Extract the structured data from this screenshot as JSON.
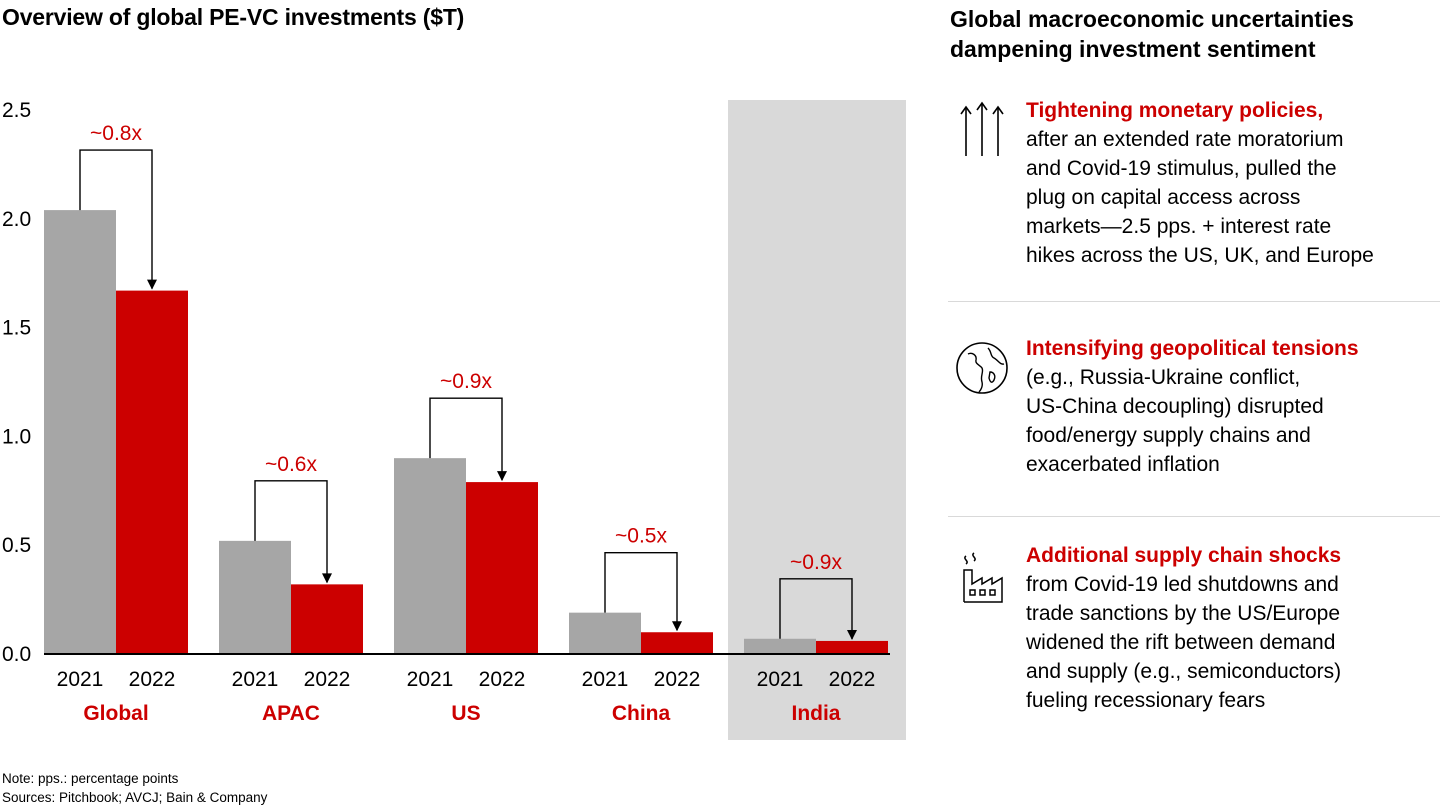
{
  "left_title": "Overview of global PE-VC investments ($T)",
  "right_title_line1": "Global macroeconomic uncertainties",
  "right_title_line2": "dampening investment sentiment",
  "colors": {
    "gray": "#a6a6a6",
    "red": "#cc0000",
    "highlight": "#d9d9d9",
    "label_red": "#cc0000"
  },
  "chart_data": {
    "type": "bar",
    "title": "Overview of global PE-VC investments ($T)",
    "xlabel": "",
    "ylabel": "$T",
    "ylim": [
      0,
      2.5
    ],
    "yticks": [
      "0.0",
      "0.5",
      "1.0",
      "1.5",
      "2.0",
      "2.5"
    ],
    "grid": false,
    "categories": [
      "Global",
      "APAC",
      "US",
      "China",
      "India"
    ],
    "highlighted_category": "India",
    "series": [
      {
        "name": "2021",
        "color": "#a6a6a6",
        "values": [
          2.04,
          0.52,
          0.9,
          0.19,
          0.07
        ]
      },
      {
        "name": "2022",
        "color": "#cc0000",
        "values": [
          1.67,
          0.32,
          0.79,
          0.1,
          0.06
        ]
      }
    ],
    "annotations": [
      "~0.8x",
      "~0.6x",
      "~0.9x",
      "~0.5x",
      "~0.9x"
    ]
  },
  "factors": [
    {
      "icon": "arrows-up-icon",
      "heading": "Tightening monetary policies,",
      "lines": [
        "after an extended rate moratorium",
        "and Covid-19 stimulus, pulled the",
        "plug on capital access across",
        "markets—2.5 pps. + interest rate",
        "hikes across the US, UK, and Europe"
      ]
    },
    {
      "icon": "globe-icon",
      "heading": "Intensifying geopolitical tensions",
      "lines": [
        "(e.g., Russia-Ukraine conflict,",
        "US-China decoupling) disrupted",
        "food/energy supply chains and",
        "exacerbated inflation"
      ]
    },
    {
      "icon": "factory-icon",
      "heading": "Additional supply chain shocks",
      "lines": [
        "from Covid-19 led shutdowns and",
        "trade sanctions by the US/Europe",
        "widened the rift between demand",
        "and supply (e.g., semiconductors)",
        "fueling recessionary fears"
      ]
    }
  ],
  "notes": {
    "note": "Note: pps.: percentage points",
    "sources": "Sources: Pitchbook; AVCJ; Bain & Company"
  }
}
